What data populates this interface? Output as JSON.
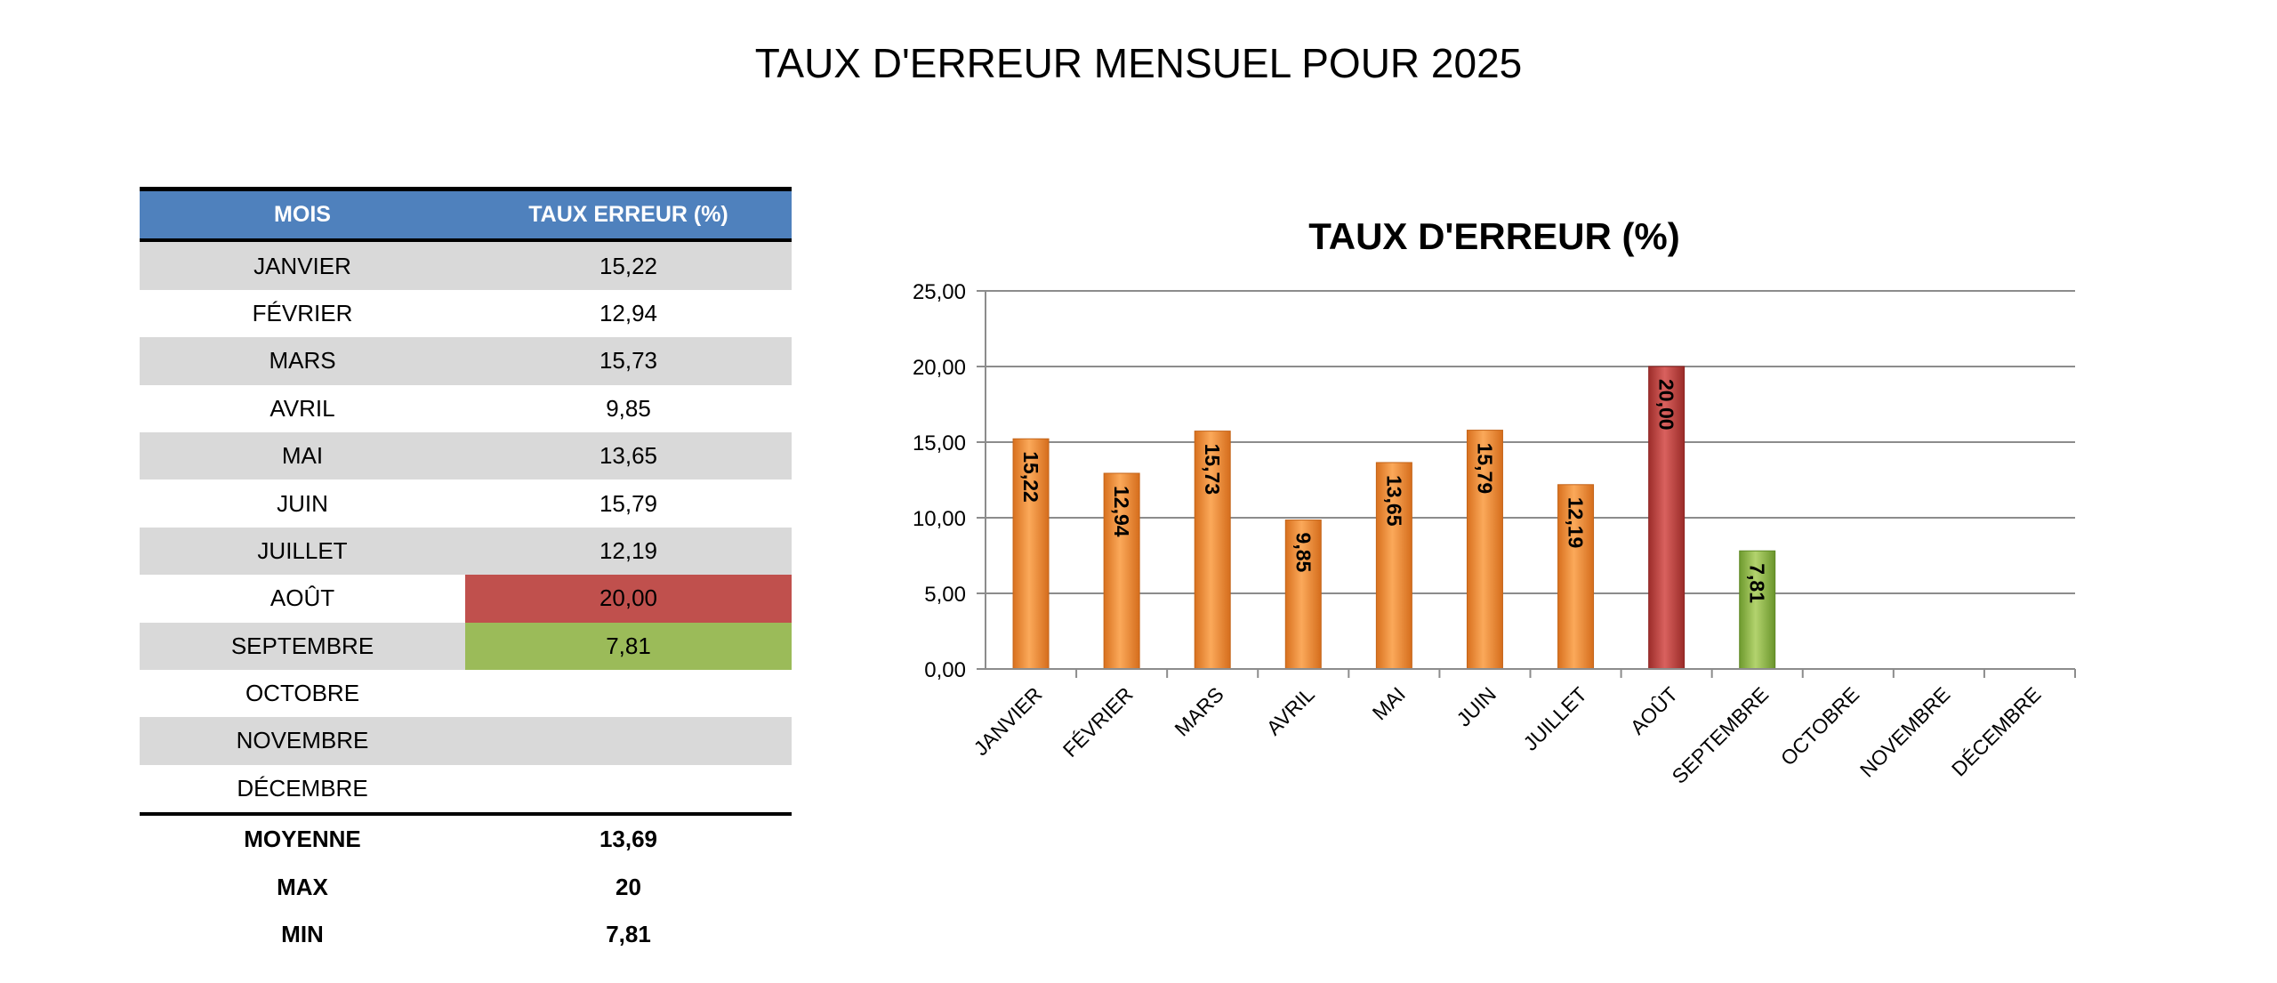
{
  "page": {
    "title": "TAUX D'ERREUR MENSUEL POUR 2025"
  },
  "table": {
    "headers": [
      "MOIS",
      "TAUX ERREUR (%)"
    ],
    "rows": [
      {
        "month": "JANVIER",
        "rate": "15,22"
      },
      {
        "month": "FÉVRIER",
        "rate": "12,94"
      },
      {
        "month": "MARS",
        "rate": "15,73"
      },
      {
        "month": "AVRIL",
        "rate": "9,85"
      },
      {
        "month": "MAI",
        "rate": "13,65"
      },
      {
        "month": "JUIN",
        "rate": "15,79"
      },
      {
        "month": "JUILLET",
        "rate": "12,19"
      },
      {
        "month": "AOÛT",
        "rate": "20,00"
      },
      {
        "month": "SEPTEMBRE",
        "rate": "7,81"
      },
      {
        "month": "OCTOBRE",
        "rate": ""
      },
      {
        "month": "NOVEMBRE",
        "rate": ""
      },
      {
        "month": "DÉCEMBRE",
        "rate": ""
      }
    ],
    "stats": [
      {
        "label": "MOYENNE",
        "value": "13,69"
      },
      {
        "label": "MAX",
        "value": "20"
      },
      {
        "label": "MIN",
        "value": "7,81"
      }
    ],
    "highlight_colors": {
      "max": "#c0504d",
      "min": "#9bbb59"
    },
    "header_color": "#4f81bd",
    "shade_color": "#d9d9d9"
  },
  "chart_data": {
    "type": "bar",
    "title": "TAUX D'ERREUR (%)",
    "xlabel": "",
    "ylabel": "",
    "categories": [
      "JANVIER",
      "FÉVRIER",
      "MARS",
      "AVRIL",
      "MAI",
      "JUIN",
      "JUILLET",
      "AOÛT",
      "SEPTEMBRE",
      "OCTOBRE",
      "NOVEMBRE",
      "DÉCEMBRE"
    ],
    "values": [
      15.22,
      12.94,
      15.73,
      9.85,
      13.65,
      15.79,
      12.19,
      20.0,
      7.81,
      null,
      null,
      null
    ],
    "data_labels": [
      "15,22",
      "12,94",
      "15,73",
      "9,85",
      "13,65",
      "15,79",
      "12,19",
      "20,00",
      "7,81",
      "",
      "",
      ""
    ],
    "ylim": [
      0,
      25
    ],
    "yticks": [
      0,
      5,
      10,
      15,
      20,
      25
    ],
    "ytick_labels": [
      "0,00",
      "5,00",
      "10,00",
      "15,00",
      "20,00",
      "25,00"
    ],
    "grid": true,
    "legend": "none",
    "colors": {
      "default": "#f79646",
      "max": "#c0504d",
      "min": "#9bbb59"
    }
  }
}
